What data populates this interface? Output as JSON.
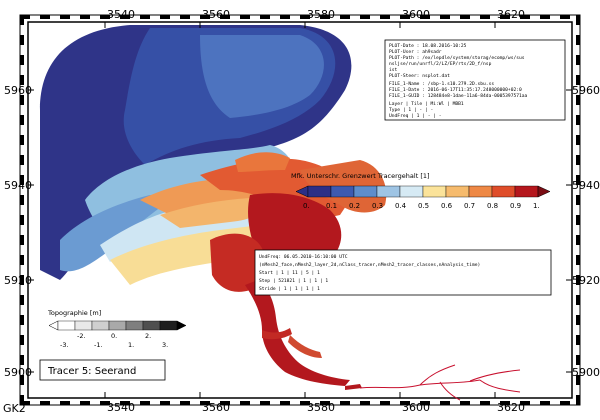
{
  "map": {
    "corner_label": "GK2",
    "x_ticks": [
      "3540",
      "3560",
      "3580",
      "3600",
      "3620"
    ],
    "y_ticks": [
      "5960",
      "5940",
      "5920",
      "5900"
    ]
  },
  "info_box": {
    "plot_date": "PLOT-Date : 18.08.2016-10:25",
    "plot_user": "PLOT-User : ah9sadr",
    "plot_path": "PLOT-Path : /ex/lepdle/system/storag/ecomp/ws/sus",
    "plot_path2": "nsljse/run/unrfl/2/LZ/EP/rts/2D_f/nsp",
    "plot_path3": "ist",
    "plot_steer": "PLOT-Steer: nsplot.dat",
    "file_name": "FILE_1-Name : /sbp-1.s10.279.2D.sbu.ss",
    "file_date": "FILE_1-Date : 2016-06-17T11:35:17.248000000+02:0",
    "file_guid": "FILE_1-GUID : 128484e8-1dae-11a6-84da-0005397571aa",
    "layer_header": "Layer   | Tile | Mi:Wl  | MBB1",
    "layer_type": "Type    |  1   |  -     |  -",
    "layer_undefreq": "UndFreq |  1   |  -     |  -"
  },
  "legend": {
    "title": "Mfk. Unterschr. Grenzwert Tracergehalt [1]",
    "labels": [
      "0.",
      "0.1",
      "0.2",
      "0.3",
      "0.4",
      "0.5",
      "0.6",
      "0.7",
      "0.8",
      "0.9",
      "1."
    ],
    "colors": [
      "#2c2f86",
      "#3d5ab0",
      "#5e8dcb",
      "#9ec4e4",
      "#d6eaf4",
      "#fbe39a",
      "#f6bb6d",
      "#ee8845",
      "#df4d2a",
      "#b5171d"
    ]
  },
  "time_box": {
    "line1": "UndFreq: 06.05.2010-16:10:00 UTC",
    "line2": "(nMesh2_face,nMesh2_layer_2d,nClass_tracer,nMesh2_tracer_classes,nAnalysis_time)",
    "line3": "Start     |    1    |   11    |    5    |    1",
    "line4": "Step      | 521821  |    1    |    1    |    1",
    "line5": "Stride    |    1    |    1    |    1    |    1"
  },
  "topography": {
    "title": "Topographie [m]",
    "labels": [
      "-3.",
      "-2.",
      "-1.",
      "0.",
      "1.",
      "2.",
      "3."
    ],
    "colors": [
      "#ffffff",
      "#e9e9e9",
      "#cfcfcf",
      "#a9a9a9",
      "#7f7f7f",
      "#4f4f4f",
      "#1e1e1e"
    ]
  },
  "tracer_label": "Tracer 5: Seerand"
}
